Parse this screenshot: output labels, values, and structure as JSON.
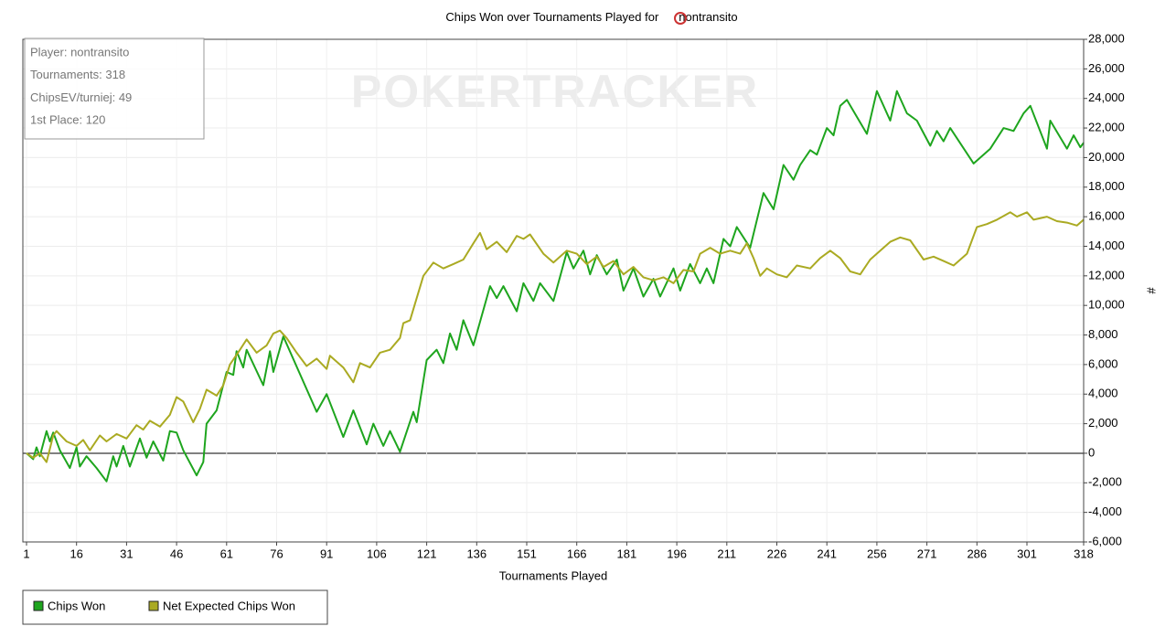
{
  "chart_data": {
    "type": "line",
    "title": "Chips Won over Tournaments Played for",
    "title_player": "nontransito",
    "watermark": "POKERTRACKER",
    "x_label": "Tournaments Played",
    "y_label": "#",
    "info": [
      "Player: nontransito",
      "Tournaments: 318",
      "ChipsEV/turniej: 49",
      "1st Place: 120"
    ],
    "xlim": [
      1,
      318
    ],
    "xticks": [
      1,
      16,
      31,
      46,
      61,
      76,
      91,
      106,
      121,
      136,
      151,
      166,
      181,
      196,
      211,
      226,
      241,
      256,
      271,
      286,
      301,
      318
    ],
    "ylim": [
      -6000,
      28000
    ],
    "yticks": [
      {
        "value": -6000,
        "label": "-6,000"
      },
      {
        "value": -4000,
        "label": "-4,000"
      },
      {
        "value": -2000,
        "label": "-2,000"
      },
      0,
      {
        "value": 2000,
        "label": "2,000"
      },
      {
        "value": 4000,
        "label": "4,000"
      },
      {
        "value": 6000,
        "label": "6,000"
      },
      {
        "value": 8000,
        "label": "8,000"
      },
      {
        "value": 10000,
        "label": "10,000"
      },
      {
        "value": 12000,
        "label": "12,000"
      },
      {
        "value": 14000,
        "label": "14,000"
      },
      {
        "value": 16000,
        "label": "16,000"
      },
      {
        "value": 18000,
        "label": "18,000"
      },
      {
        "value": 20000,
        "label": "20,000"
      },
      {
        "value": 22000,
        "label": "22,000"
      },
      {
        "value": 24000,
        "label": "24,000"
      },
      {
        "value": 26000,
        "label": "26,000"
      },
      {
        "value": 28000,
        "label": "28,000"
      }
    ],
    "grid": true,
    "series": [
      {
        "name": "Chips Won",
        "color": "#1ea51e",
        "x": [
          1,
          3,
          4,
          5,
          7,
          8,
          9,
          11,
          14,
          16,
          17,
          19,
          22,
          25,
          27,
          28,
          30,
          32,
          35,
          37,
          39,
          42,
          44,
          46,
          48,
          52,
          54,
          55,
          58,
          61,
          63,
          64,
          66,
          67,
          72,
          74,
          75,
          78,
          88,
          91,
          96,
          99,
          103,
          105,
          108,
          110,
          113,
          117,
          118,
          121,
          124,
          126,
          128,
          130,
          132,
          135,
          140,
          142,
          144,
          148,
          150,
          153,
          155,
          159,
          163,
          165,
          168,
          170,
          172,
          175,
          178,
          180,
          183,
          186,
          189,
          191,
          195,
          197,
          200,
          203,
          205,
          207,
          210,
          212,
          214,
          218,
          222,
          225,
          228,
          231,
          233,
          236,
          238,
          241,
          243,
          245,
          247,
          253,
          256,
          260,
          262,
          265,
          268,
          272,
          274,
          276,
          278,
          285,
          290,
          294,
          297,
          300,
          302,
          307,
          308,
          313,
          315,
          317,
          318
        ],
        "values": [
          0,
          -400,
          400,
          -200,
          1500,
          800,
          1400,
          200,
          -1000,
          400,
          -900,
          -200,
          -1000,
          -1900,
          -200,
          -900,
          500,
          -900,
          1000,
          -300,
          800,
          -500,
          1500,
          1400,
          200,
          -1500,
          -600,
          2000,
          2900,
          5500,
          5300,
          6900,
          5800,
          7000,
          4600,
          6900,
          5500,
          7900,
          2800,
          4000,
          1100,
          2900,
          600,
          2000,
          500,
          1500,
          100,
          2800,
          2100,
          6300,
          7000,
          6100,
          8100,
          7000,
          9000,
          7300,
          11300,
          10500,
          11300,
          9600,
          11500,
          10300,
          11500,
          10300,
          13600,
          12500,
          13700,
          12100,
          13400,
          12100,
          13100,
          11000,
          12500,
          10600,
          11800,
          10600,
          12500,
          11000,
          12800,
          11500,
          12500,
          11500,
          14500,
          14000,
          15300,
          13900,
          17600,
          16500,
          19500,
          18500,
          19500,
          20500,
          20200,
          22000,
          21500,
          23500,
          23900,
          21600,
          24500,
          22500,
          24500,
          23000,
          22500,
          20800,
          21800,
          21100,
          22000,
          19600,
          20600,
          22000,
          21800,
          23000,
          23500,
          20600,
          22500,
          20600,
          21500,
          20700,
          21000
        ]
      },
      {
        "name": "Net Expected Chips Won",
        "color": "#aaaa22",
        "x": [
          1,
          3,
          5,
          7,
          9,
          10,
          13,
          16,
          18,
          20,
          23,
          25,
          28,
          31,
          34,
          36,
          38,
          41,
          44,
          46,
          48,
          51,
          53,
          55,
          58,
          60,
          62,
          65,
          67,
          70,
          73,
          75,
          77,
          79,
          82,
          85,
          88,
          91,
          92,
          96,
          99,
          101,
          104,
          107,
          110,
          113,
          114,
          116,
          120,
          123,
          126,
          129,
          132,
          135,
          137,
          139,
          142,
          145,
          148,
          150,
          152,
          156,
          159,
          163,
          166,
          169,
          172,
          174,
          177,
          180,
          183,
          186,
          189,
          192,
          195,
          198,
          201,
          203,
          206,
          209,
          212,
          215,
          217,
          219,
          221,
          223,
          226,
          229,
          232,
          236,
          239,
          242,
          245,
          248,
          251,
          254,
          257,
          260,
          263,
          266,
          270,
          273,
          276,
          279,
          283,
          286,
          289,
          292,
          296,
          298,
          301,
          303,
          307,
          310,
          313,
          316,
          318
        ],
        "values": [
          0,
          -300,
          0,
          -600,
          1200,
          1500,
          800,
          500,
          900,
          200,
          1200,
          800,
          1300,
          1000,
          1900,
          1600,
          2200,
          1800,
          2600,
          3800,
          3500,
          2100,
          3000,
          4300,
          3900,
          4600,
          6000,
          7000,
          7700,
          6800,
          7300,
          8100,
          8300,
          7800,
          6800,
          5900,
          6400,
          5700,
          6600,
          5800,
          4800,
          6100,
          5800,
          6800,
          7000,
          7800,
          8800,
          9000,
          12000,
          12900,
          12500,
          12800,
          13100,
          14200,
          14900,
          13800,
          14300,
          13600,
          14700,
          14500,
          14800,
          13500,
          12900,
          13700,
          13500,
          12800,
          13300,
          12600,
          13000,
          12100,
          12600,
          11900,
          11700,
          11900,
          11500,
          12400,
          12300,
          13500,
          13900,
          13500,
          13700,
          13500,
          14200,
          13200,
          12000,
          12500,
          12100,
          11900,
          12700,
          12500,
          13200,
          13700,
          13200,
          12300,
          12100,
          13100,
          13700,
          14300,
          14600,
          14400,
          13100,
          13300,
          13000,
          12700,
          13500,
          15300,
          15500,
          15800,
          16300,
          16000,
          16300,
          15800,
          16000,
          15700,
          15600,
          15400,
          15800
        ]
      }
    ]
  }
}
